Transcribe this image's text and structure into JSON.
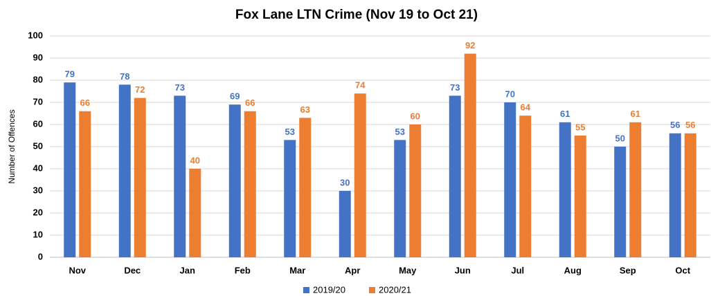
{
  "chart_data": {
    "type": "bar",
    "title": "Fox Lane LTN Crime (Nov 19 to Oct 21)",
    "y_label": "Number of Offences",
    "categories": [
      "Nov",
      "Dec",
      "Jan",
      "Feb",
      "Mar",
      "Apr",
      "May",
      "Jun",
      "Jul",
      "Aug",
      "Sep",
      "Oct"
    ],
    "series": [
      {
        "name": "2019/20",
        "color": "#4472c4",
        "values": [
          79,
          78,
          73,
          69,
          53,
          30,
          53,
          73,
          70,
          61,
          50,
          56
        ]
      },
      {
        "name": "2020/21",
        "color": "#ed7d31",
        "values": [
          66,
          72,
          40,
          66,
          63,
          74,
          60,
          92,
          64,
          55,
          61,
          56
        ]
      }
    ],
    "ylim": [
      0,
      100
    ],
    "yticks": [
      0,
      10,
      20,
      30,
      40,
      50,
      60,
      70,
      80,
      90,
      100
    ],
    "grid": true,
    "legend": "bottom"
  }
}
